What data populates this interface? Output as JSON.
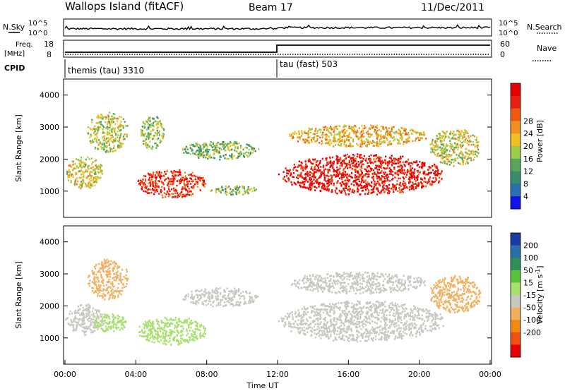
{
  "header": {
    "title": "Wallops Island (fitACF)",
    "beam": "Beam 17",
    "date": "11/Dec/2011"
  },
  "top_panel": {
    "nsky_label": "N.Sky",
    "nsearch_label": "N.Search",
    "left_ticks": [
      "10^5",
      "10^0"
    ],
    "right_ticks": [
      "10^5",
      "10^0"
    ],
    "freq_label_1": "Freq.",
    "freq_label_2": "[MHz]",
    "freq_ticks": [
      "18",
      "8"
    ],
    "nave_label": "Nave",
    "nave_ticks": [
      "60",
      "0"
    ],
    "cpid_label": "CPID",
    "cpid_segments": [
      {
        "name": "themis (tau) 3310",
        "start_hour": 0.0,
        "end_hour": 12.0
      },
      {
        "name": "tau (fast) 503",
        "start_hour": 12.0,
        "end_hour": 24.0
      }
    ]
  },
  "chart_data": [
    {
      "type": "heatmap",
      "quantity": "Power",
      "ylabel": "Slant Range [km]",
      "xlabel": "Time UT",
      "xlim_hours": [
        0,
        24
      ],
      "ylim_km": [
        180,
        4500
      ],
      "yticks": [
        1000,
        2000,
        3000,
        4000
      ],
      "colorbar": {
        "label": "Power [dB]",
        "ticks": [
          "4",
          "8",
          "12",
          "16",
          "20",
          "24",
          "28"
        ],
        "colors": [
          "#1212e6",
          "#2b6fb0",
          "#3a8c6e",
          "#5aa65a",
          "#9ccc4c",
          "#f0c020",
          "#f09020",
          "#f05a10",
          "#e62010",
          "#e60000"
        ]
      },
      "echo_regions": [
        {
          "t0": 0.0,
          "t1": 2.2,
          "r0": 1100,
          "r1": 2100,
          "power_db": 18
        },
        {
          "t0": 1.2,
          "t1": 3.6,
          "r0": 2200,
          "r1": 3500,
          "power_db": 16
        },
        {
          "t0": 4.2,
          "t1": 5.6,
          "r0": 2300,
          "r1": 3400,
          "power_db": 15
        },
        {
          "t0": 4.0,
          "t1": 8.0,
          "r0": 800,
          "r1": 1700,
          "power_db": 27
        },
        {
          "t0": 8.0,
          "t1": 11.0,
          "r0": 900,
          "r1": 1200,
          "power_db": 14
        },
        {
          "t0": 6.5,
          "t1": 11.0,
          "r0": 2000,
          "r1": 2600,
          "power_db": 14
        },
        {
          "t0": 12.0,
          "t1": 21.5,
          "r0": 900,
          "r1": 2200,
          "power_db": 29
        },
        {
          "t0": 12.5,
          "t1": 20.5,
          "r0": 2400,
          "r1": 3100,
          "power_db": 20
        },
        {
          "t0": 20.5,
          "t1": 23.5,
          "r0": 1800,
          "r1": 3000,
          "power_db": 17
        }
      ]
    },
    {
      "type": "heatmap",
      "quantity": "Velocity",
      "ylabel": "Slant Range [km]",
      "xlabel": "Time UT",
      "xlim_hours": [
        0,
        24
      ],
      "ylim_km": [
        180,
        4500
      ],
      "yticks": [
        1000,
        2000,
        3000,
        4000
      ],
      "xticks": [
        "00:00",
        "04:00",
        "08:00",
        "12:00",
        "16:00",
        "20:00",
        "00:00"
      ],
      "colorbar": {
        "label": "Velocity [m s",
        "label_exp": "-1",
        "label_end": "]",
        "ticks": [
          "200",
          "100",
          "50",
          "15",
          "-15",
          "-50",
          "-100",
          "-200"
        ],
        "colors": [
          "#1a3aa8",
          "#2c6ea8",
          "#2f8f5a",
          "#5cc23a",
          "#a8e070",
          "#c8c8c0",
          "#f0b060",
          "#f08a10",
          "#f05010",
          "#e60000"
        ]
      },
      "echo_regions": [
        {
          "t0": 0.0,
          "t1": 2.2,
          "r0": 1100,
          "r1": 2100,
          "velocity": -10
        },
        {
          "t0": 1.2,
          "t1": 3.6,
          "r0": 2200,
          "r1": 3500,
          "velocity": -20
        },
        {
          "t0": 1.5,
          "t1": 3.5,
          "r0": 1200,
          "r1": 1800,
          "velocity": 30
        },
        {
          "t0": 4.0,
          "t1": 8.0,
          "r0": 800,
          "r1": 1700,
          "velocity": 40
        },
        {
          "t0": 6.5,
          "t1": 11.0,
          "r0": 2000,
          "r1": 2600,
          "velocity": -10
        },
        {
          "t0": 12.0,
          "t1": 21.5,
          "r0": 900,
          "r1": 2200,
          "velocity": -5
        },
        {
          "t0": 12.5,
          "t1": 20.5,
          "r0": 2400,
          "r1": 3100,
          "velocity": -5
        },
        {
          "t0": 20.5,
          "t1": 23.5,
          "r0": 1800,
          "r1": 3000,
          "velocity": -30
        }
      ]
    }
  ]
}
